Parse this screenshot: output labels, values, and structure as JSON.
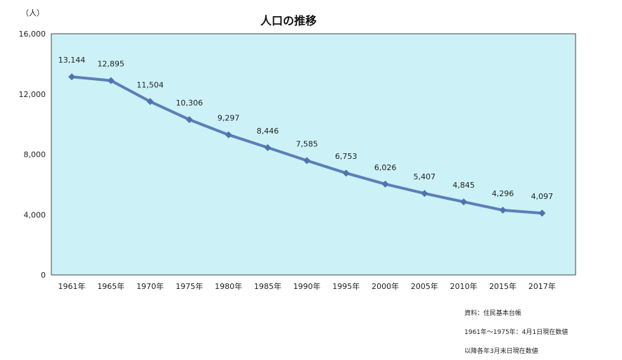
{
  "chart_data": {
    "type": "line",
    "title": "人口の推移",
    "ylabel": "（人）",
    "xlabel": "",
    "categories": [
      "1961年",
      "1965年",
      "1970年",
      "1975年",
      "1980年",
      "1985年",
      "1990年",
      "1995年",
      "2000年",
      "2005年",
      "2010年",
      "2015年",
      "2017年"
    ],
    "series": [
      {
        "values": [
          13144,
          12895,
          11504,
          10306,
          9297,
          8446,
          7585,
          6753,
          6026,
          5407,
          4845,
          4296,
          4097
        ]
      }
    ],
    "data_labels": [
      "13,144",
      "12,895",
      "11,504",
      "10,306",
      "9,297",
      "8,446",
      "7,585",
      "6,753",
      "6,026",
      "5,407",
      "4,845",
      "4,296",
      "4,097"
    ],
    "ylim": [
      0,
      16000
    ],
    "yticks": [
      0,
      4000,
      8000,
      12000,
      16000
    ],
    "ytick_labels": [
      "0",
      "4,000",
      "8,000",
      "12,000",
      "16,000"
    ],
    "grid": false,
    "colors": {
      "plot_background": "#ccf2f7",
      "line": "#5b7fb8",
      "marker": "#4f73ad"
    }
  },
  "notes": {
    "source": "資料：住民基本台帳",
    "line1": "1961年～1975年：4月1日現在数値",
    "line2": "以降各年3月末日現在数値"
  }
}
